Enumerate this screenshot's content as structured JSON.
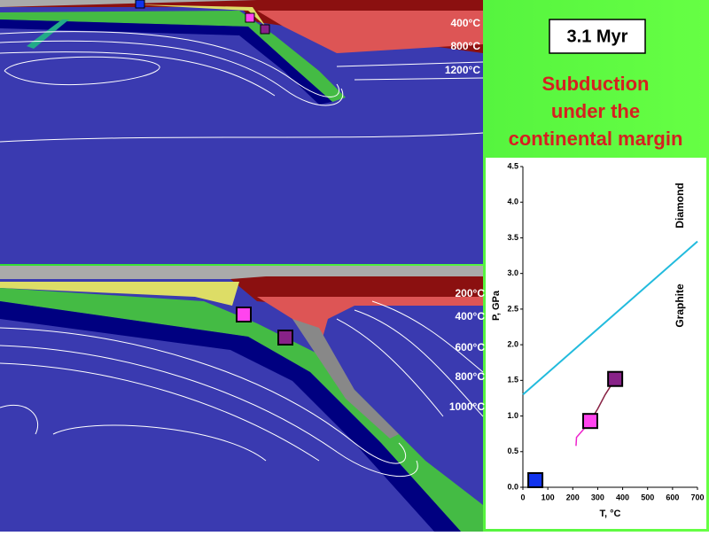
{
  "slide": {
    "title": "3.1 Myr",
    "caption_lines": [
      "Subduction",
      "under the",
      "continental margin"
    ],
    "top_isotherms": [
      "400°C",
      "800°C",
      "1200°C"
    ],
    "bottom_isotherms": [
      "200°C",
      "400°C",
      "600°C",
      "800°C",
      "1000°C"
    ]
  },
  "chart_data": {
    "type": "line",
    "xlabel": "T, °C",
    "ylabel": "P, GPa",
    "annotations": [
      "Diamond",
      "Graphite"
    ],
    "xlim": [
      0,
      700
    ],
    "xticks": [
      0,
      100,
      200,
      300,
      400,
      500,
      600,
      700
    ],
    "ylim": [
      0,
      4.5
    ],
    "yticks": [
      {
        "value": 0,
        "label": "0.0"
      },
      0.5,
      {
        "value": 1,
        "label": "1.0"
      },
      1.5,
      {
        "value": 2,
        "label": "2.0"
      },
      2.5,
      {
        "value": 3,
        "label": "3.0"
      },
      3.5,
      {
        "value": 4,
        "label": "4.0"
      },
      4.5
    ],
    "series": [
      {
        "color": "#22bbdd",
        "x": [
          0,
          700
        ],
        "values": [
          1.3,
          3.45
        ]
      },
      {
        "color": "#ee22cc",
        "x": [
          213,
          215,
          240,
          270
        ],
        "values": [
          0.58,
          0.7,
          0.8,
          0.93
        ]
      },
      {
        "color": "#882244",
        "x": [
          270,
          300,
          330,
          370
        ],
        "values": [
          0.93,
          1.1,
          1.3,
          1.52
        ]
      }
    ],
    "markers": [
      {
        "color": "#1133ee",
        "x": 50,
        "values": 0.1
      },
      {
        "color": "#ff44ee",
        "x": 270,
        "values": 0.93
      },
      {
        "color": "#882288",
        "x": 370,
        "values": 1.52
      }
    ]
  }
}
